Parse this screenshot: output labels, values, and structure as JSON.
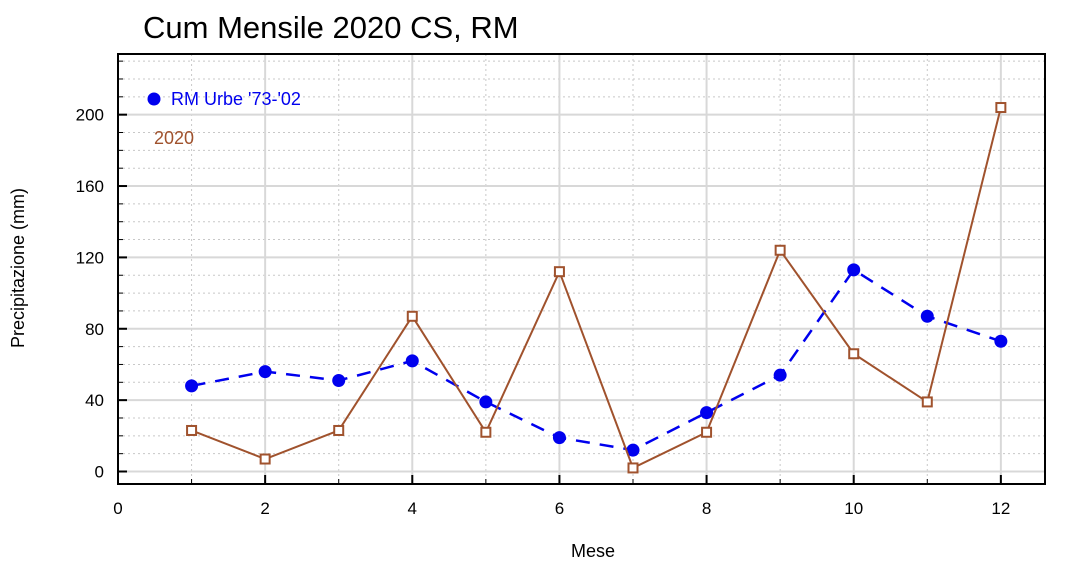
{
  "chart_data": {
    "type": "line",
    "title": "Cum Mensile 2020 CS, RM",
    "xlabel": "Mese",
    "ylabel": "Precipitazione (mm)",
    "xlim": [
      0,
      12.6
    ],
    "ylim": [
      -7,
      234
    ],
    "xticks": [
      "0",
      "2",
      "4",
      "6",
      "8",
      "10",
      "12"
    ],
    "yticks": [
      "0",
      "40",
      "80",
      "120",
      "160",
      "200"
    ],
    "grid": true,
    "legend_position": "top-left",
    "series": [
      {
        "name": "RM Urbe '73-'02",
        "color": "#0000ee",
        "line_style": "dashed",
        "marker": "filled-circle",
        "x": [
          1,
          2,
          3,
          4,
          5,
          6,
          7,
          8,
          9,
          10,
          11,
          12
        ],
        "y": [
          48,
          56,
          51,
          62,
          39,
          19,
          12,
          33,
          54,
          113,
          87,
          73
        ]
      },
      {
        "name": "2020",
        "color": "#a0522d",
        "line_style": "solid",
        "marker": "open-square",
        "x": [
          1,
          2,
          3,
          4,
          5,
          6,
          7,
          8,
          9,
          10,
          11,
          12
        ],
        "y": [
          23,
          7,
          23,
          87,
          22,
          112,
          2,
          22,
          124,
          66,
          39,
          204
        ]
      }
    ]
  }
}
